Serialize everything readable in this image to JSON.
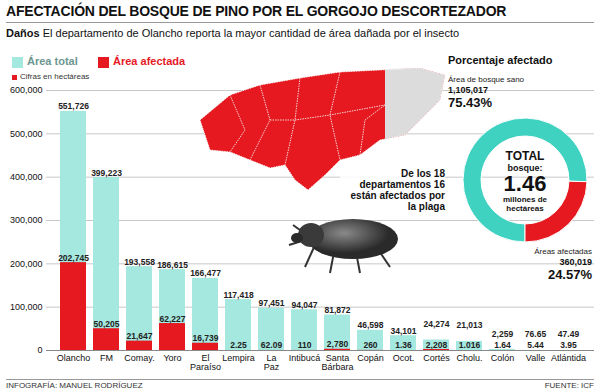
{
  "chart_data": [
    {
      "type": "bar",
      "title": "AFECTACIÓN DEL BOSQUE DE PINO POR EL GORGOJO DESCORTEZADOR",
      "subtitle_lead": "Daños",
      "subtitle": "El departamento de Olancho reporta la mayor cantidad de área dañada por el insecto",
      "note": "Cifras en hectáreas",
      "annotations": [
        "De los 18 departamentos 16 están afectados por la plaga"
      ],
      "credit": "INFOGRAFÍA: MANUEL RODRÍGUEZ",
      "source": "FUENTE: ICF",
      "categories": [
        "Olancho",
        "FM",
        "Comay.",
        "Yoro",
        "El Paraíso",
        "Lempira",
        "La Paz",
        "Intibucá",
        "Santa Bárbara",
        "Copán",
        "Ocot.",
        "Cortés",
        "Cholu.",
        "Colón",
        "Valle",
        "Atlántida"
      ],
      "series": [
        {
          "name": "Área total",
          "color": "#a5e8df",
          "values": [
            551726,
            399223,
            193558,
            186615,
            166477,
            117418,
            97451,
            94047,
            81872,
            46598,
            34101,
            24274,
            21013,
            2259,
            76.65,
            47.49
          ],
          "value_labels": [
            "551,726",
            "399,223",
            "193,558",
            "186,615",
            "166,477",
            "117,418",
            "97,451",
            "94,047",
            "81,872",
            "46,598",
            "34,101",
            "24,274",
            "21,013",
            "2,259",
            "76.65",
            "47.49"
          ]
        },
        {
          "name": "Área afectada",
          "color": "#e5191f",
          "values": [
            202745,
            50205,
            21647,
            62227,
            16739,
            2.25,
            62.09,
            110,
            2780,
            260,
            1.36,
            2208,
            1.016,
            1.64,
            5.44,
            3.95
          ],
          "value_labels": [
            "202,745",
            "50,205",
            "21,647",
            "62,227",
            "16,739",
            "2.25",
            "62.09",
            "110",
            "2,780",
            "260",
            "1.36",
            "2,208",
            "1.016",
            "1.64",
            "5.44",
            "3.95"
          ]
        }
      ],
      "ylim": [
        0,
        600000
      ],
      "yticks": [
        0,
        {
          "value": 100000,
          "label": "100,000"
        },
        {
          "value": 200000,
          "label": "200,000"
        },
        {
          "value": 300000,
          "label": "300,000"
        },
        {
          "value": 400000,
          "label": "400,000"
        },
        {
          "value": 500000,
          "label": "500,000"
        },
        {
          "value": 600000,
          "label": "600,000"
        }
      ],
      "grid": true,
      "legend": "top-left",
      "stacked": false,
      "data_labels": true
    },
    {
      "type": "pie",
      "title": "Porcentaje afectado",
      "categories": [
        "Área de bosque sano",
        "Áreas afectadas"
      ],
      "values": [
        75.43,
        24.57
      ],
      "value_labels": [
        "75.43%",
        "24.57%"
      ],
      "colors": [
        "#3fd2c1",
        "#e5191f"
      ],
      "areas": [
        1105017,
        360019
      ],
      "area_labels": [
        "1,105,017",
        "360,019"
      ],
      "total_label": "TOTAL",
      "total_sublabel": "bosque:",
      "total": 1.46,
      "total_unit": "millones de hectáreas",
      "data_labels": true
    }
  ]
}
